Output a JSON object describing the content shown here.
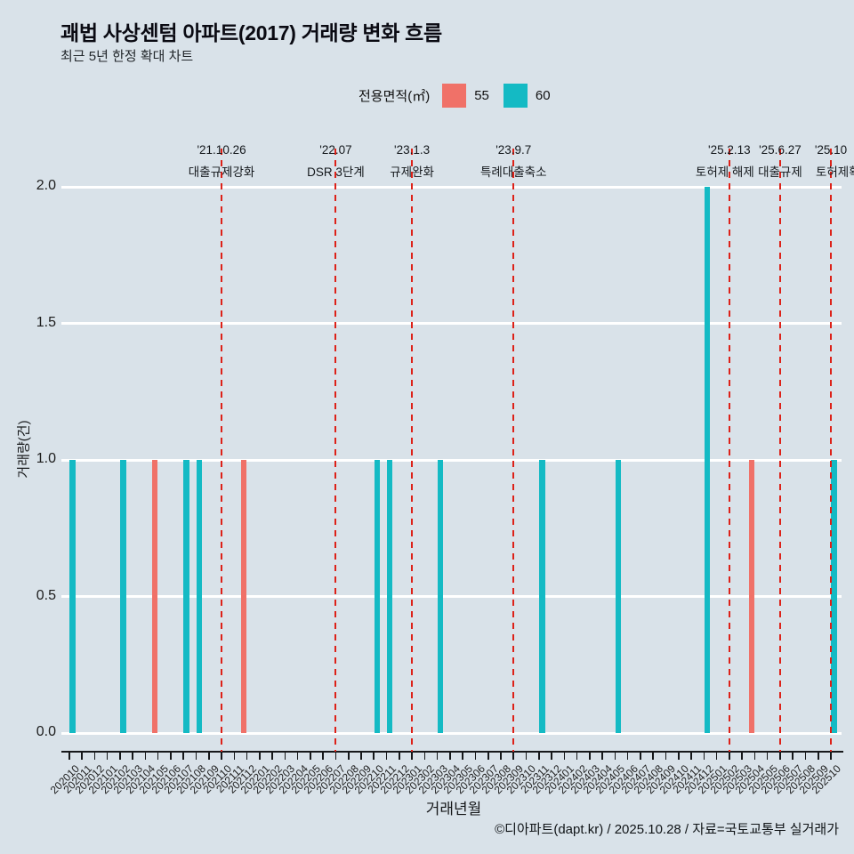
{
  "header": {
    "title": "괘법 사상센텀 아파트(2017) 거래량 변화 흐름",
    "subtitle": "최근 5년 한정 확대 차트"
  },
  "legend": {
    "title": "전용면적(㎡)",
    "items": [
      {
        "label": "55",
        "color": "#f07168"
      },
      {
        "label": "60",
        "color": "#14bac4"
      }
    ]
  },
  "footer": {
    "credit": "©디아파트(dapt.kr) / 2025.10.28 / 자료=국토교통부 실거래가"
  },
  "chart_data": {
    "type": "bar",
    "title": "괘법 사상센텀 아파트(2017) 거래량 변화 흐름",
    "subtitle": "최근 5년 한정 확대 차트",
    "xlabel": "거래년월",
    "ylabel": "거래량(건)",
    "ylim": [
      0,
      2
    ],
    "ytick_labels": [
      "0.0",
      "0.5",
      "1.0",
      "1.5",
      "2.0"
    ],
    "grid": "horizontal-white",
    "legend_position": "top",
    "background_color": "#d9e2e9",
    "event_line_color": "#dd2118",
    "categories": [
      "202010",
      "202011",
      "202012",
      "202101",
      "202102",
      "202103",
      "202104",
      "202105",
      "202106",
      "202107",
      "202108",
      "202109",
      "202110",
      "202111",
      "202112",
      "202201",
      "202202",
      "202203",
      "202204",
      "202205",
      "202206",
      "202207",
      "202208",
      "202209",
      "202210",
      "202211",
      "202212",
      "202301",
      "202302",
      "202303",
      "202304",
      "202305",
      "202306",
      "202307",
      "202308",
      "202309",
      "202310",
      "202311",
      "202312",
      "202401",
      "202402",
      "202403",
      "202404",
      "202405",
      "202406",
      "202407",
      "202408",
      "202409",
      "202410",
      "202411",
      "202412",
      "202501",
      "202502",
      "202503",
      "202504",
      "202505",
      "202506",
      "202507",
      "202508",
      "202509",
      "202510"
    ],
    "series": [
      {
        "name": "55",
        "color": "#f07168",
        "values_by_month": {
          "202105": 1,
          "202112": 1,
          "202504": 1
        },
        "note": "months not listed have value 0"
      },
      {
        "name": "60",
        "color": "#14bac4",
        "values_by_month": {
          "202010": 1,
          "202102": 1,
          "202107": 1,
          "202108": 1,
          "202210": 1,
          "202211": 1,
          "202303": 1,
          "202311": 1,
          "202405": 1,
          "202412": 2,
          "202510": 1
        },
        "note": "months not listed have value 0"
      }
    ],
    "events": [
      {
        "date": "'21.10.26",
        "label": "대출규제강화",
        "month": "202110"
      },
      {
        "date": "'22.07",
        "label": "DSR 3단계",
        "month": "202207"
      },
      {
        "date": "'23.1.3",
        "label": "규제완화",
        "month": "202301"
      },
      {
        "date": "'23.9.7",
        "label": "특례대출축소",
        "month": "202309"
      },
      {
        "date": "'25.2.13",
        "label": "토허제 해제",
        "month": "202502",
        "label_dx": -5
      },
      {
        "date": "'25.6.27",
        "label": "대출규제",
        "month": "202506"
      },
      {
        "date": "'25.10",
        "label": "토허제확대",
        "month": "202510",
        "label_dx": 14
      }
    ]
  }
}
